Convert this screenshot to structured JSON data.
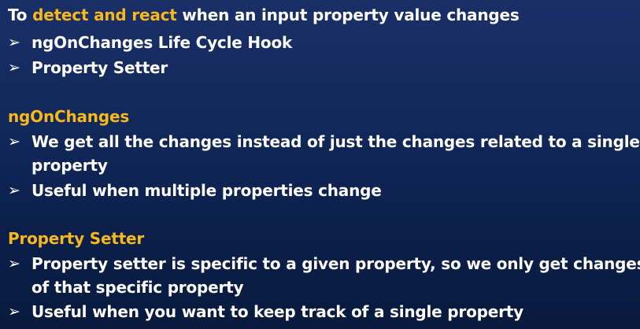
{
  "intro": {
    "prefix": "To ",
    "highlight": "detect and react",
    "suffix": " when an input property value changes"
  },
  "intro_bullets": [
    "ngOnChanges Life Cycle Hook",
    "Property Setter"
  ],
  "bullet_glyph": "➢",
  "section1": {
    "heading": "ngOnChanges",
    "bullets": [
      {
        "line1": "We get all the changes instead of just the changes related to a single",
        "line2": "property"
      },
      {
        "line1": "Useful when multiple properties change"
      }
    ]
  },
  "section2": {
    "heading": "Property Setter",
    "bullets": [
      {
        "line1": "Property setter is specific to a given property, so we only get changes",
        "line2": "of that specific property"
      },
      {
        "line1": "Useful when you want to keep track of a single property"
      }
    ]
  },
  "colors": {
    "accent": "#f7b81b",
    "text": "#ffffff",
    "background": "#12295c"
  }
}
